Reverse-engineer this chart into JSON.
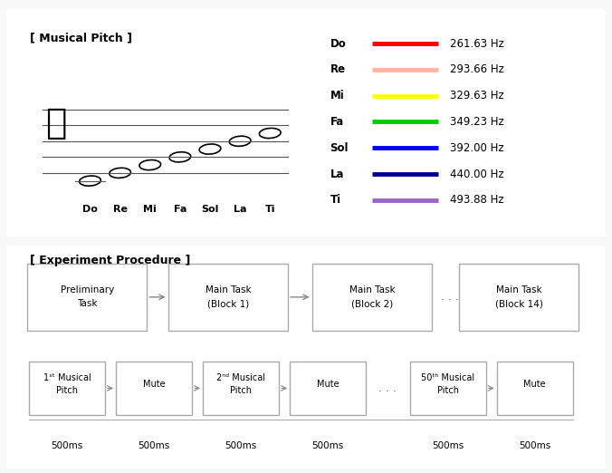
{
  "title1": "[ Musical Pitch ]",
  "title2": "[ Experiment Procedure ]",
  "notes": [
    "Do",
    "Re",
    "Mi",
    "Fa",
    "Sol",
    "La",
    "Ti"
  ],
  "frequencies": [
    "261.63 Hz",
    "293.66 Hz",
    "329.63 Hz",
    "349.23 Hz",
    "392.00 Hz",
    "440.00 Hz",
    "493.88 Hz"
  ],
  "note_colors": [
    "#FF0000",
    "#FFB6A0",
    "#FFFF00",
    "#00CC00",
    "#0000FF",
    "#00008B",
    "#9966CC"
  ],
  "bg_color": "#F5F5F5",
  "box_bg": "#FFFFFF",
  "panel_bg": "#FFFFFF",
  "arrow_color": "#888888",
  "triangle_fill": "#EBEBEB",
  "triangle_edge": "#AAAAAA",
  "top_boxes": [
    {
      "label": "Preliminary\nTask"
    },
    {
      "label": "Main Task\n(Block 1)"
    },
    {
      "label": "Main Task\n(Block 2)"
    },
    {
      "label": "Main Task\n(Block 14)"
    }
  ],
  "bottom_boxes": [
    {
      "label": "1ˢᵗ Musical\nPitch"
    },
    {
      "label": "Mute"
    },
    {
      "label": "2ⁿᵈ Musical\nPitch"
    },
    {
      "label": "Mute"
    },
    {
      "label": "50ᵗʰ Musical\nPitch"
    },
    {
      "label": "Mute"
    }
  ],
  "time_labels": [
    "500ms",
    "500ms",
    "500ms",
    "500ms",
    "500ms",
    "500ms"
  ]
}
